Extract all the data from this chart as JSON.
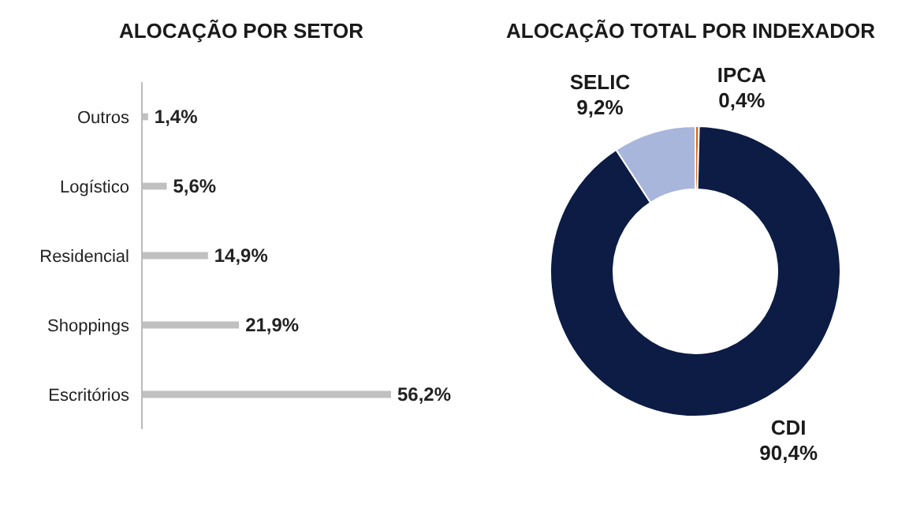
{
  "chart_data": [
    {
      "type": "bar",
      "orientation": "horizontal",
      "title": "ALOCAÇÃO POR SETOR",
      "categories": [
        "Outros",
        "Logístico",
        "Residencial",
        "Shoppings",
        "Escritórios"
      ],
      "values": [
        1.4,
        5.6,
        14.9,
        21.9,
        56.2
      ],
      "value_labels": [
        "1,4%",
        "5,6%",
        "14,9%",
        "21,9%",
        "56,2%"
      ],
      "color": "#c0c0c0",
      "tick_labels": "y"
    },
    {
      "type": "donut",
      "title": "ALOCAÇÃO TOTAL POR INDEXADOR",
      "categories": [
        "IPCA",
        "CDI",
        "SELIC"
      ],
      "values": [
        0.4,
        90.4,
        9.2
      ],
      "value_labels": [
        "0,4%",
        "90,4%",
        "9,2%"
      ],
      "colors": [
        "#e0601c",
        "#0c1c44",
        "#a8b6dc"
      ]
    }
  ]
}
